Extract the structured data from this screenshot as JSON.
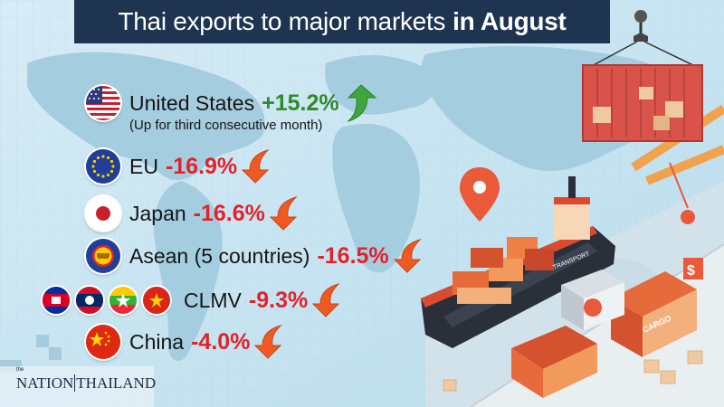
{
  "title": {
    "prefix": "Thai exports to major markets",
    "emphasis": "in August"
  },
  "markets": [
    {
      "name": "United States",
      "change": "+15.2%",
      "direction": "up",
      "flag_icon": "us-flag-icon"
    },
    {
      "name": "EU",
      "change": "-16.9%",
      "direction": "down",
      "flag_icon": "eu-flag-icon"
    },
    {
      "name": "Japan",
      "change": "-16.6%",
      "direction": "down",
      "flag_icon": "japan-flag-icon"
    },
    {
      "name": "Asean (5 countries)",
      "change": "-16.5%",
      "direction": "down",
      "flag_icon": "asean-flag-icon"
    },
    {
      "name": "CLMV",
      "change": "-9.3%",
      "direction": "down",
      "flag_icon": "clmv-flags-icon"
    },
    {
      "name": "China",
      "change": "-4.0%",
      "direction": "down",
      "flag_icon": "china-flag-icon"
    }
  ],
  "us_note": "(Up for third consecutive month)",
  "logo": {
    "text_left": "NATION",
    "text_right": "THAILAND",
    "small": "the"
  },
  "colors": {
    "banner": "#1e3450",
    "up": "#2e8b2a",
    "down": "#e2222a",
    "arrow_down": "#f05a22",
    "arrow_up": "#3ea63a"
  }
}
